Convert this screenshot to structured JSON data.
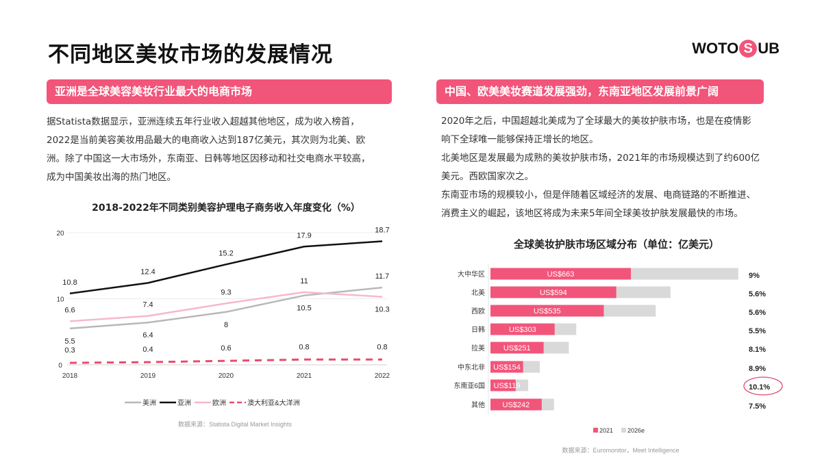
{
  "title": "不同地区美妆市场的发展情况",
  "logo": {
    "text_left": "WOTO",
    "text_mid": "S",
    "text_right": "UB",
    "brand_color": "#f2557a"
  },
  "left": {
    "banner": "亚洲是全球美容美妆行业最大的电商市场",
    "paragraph_lines": [
      "据Statista数据显示，亚洲连续五年行业收入超越其他地区，成为收入榜首，",
      "2022是当前美容美妆用品最大的电商收入达到187亿美元，其次则为北美、欧",
      "洲。除了中国这一大市场外，东南亚、日韩等地区因移动和社交电商水平较高，",
      "成为中国美妆出海的热门地区。"
    ]
  },
  "right": {
    "banner": "中国、欧美美妆赛道发展强劲，东南亚地区发展前景广阔",
    "paragraph_lines": [
      "2020年之后，中国超越北美成为了全球最大的美妆护肤市场，也是在疫情影",
      "响下全球唯一能够保持正增长的地区。",
      "北美地区是发展最为成熟的美妆护肤市场，2021年的市场规模达到了约600亿",
      "美元。西欧国家次之。",
      "东南亚市场的规模较小，但是伴随着区域经济的发展、电商链路的不断推进、",
      "消费主义的崛起，该地区将成为未来5年间全球美妆护肤发展最快的市场。"
    ]
  },
  "chart_data": [
    {
      "type": "line",
      "title": "2018-2022年不同类别美容护理电子商务收入年度变化（%）",
      "x": [
        "2018",
        "2019",
        "2020",
        "2021",
        "2022"
      ],
      "ylim": [
        0,
        20
      ],
      "yticks": [
        "0",
        "10",
        "20"
      ],
      "grid": true,
      "legend_position": "bottom",
      "series": [
        {
          "name": "美洲",
          "values": [
            5.5,
            6.4,
            8,
            10.5,
            11.7
          ],
          "labels": [
            "5.5",
            "6.4",
            "8",
            "10.5",
            "11.7"
          ],
          "color": "#b8b8b8",
          "dash": false
        },
        {
          "name": "亚洲",
          "values": [
            10.8,
            12.4,
            15.2,
            17.9,
            18.7
          ],
          "labels": [
            "10.8",
            "12.4",
            "15.2",
            "17.9",
            "18.7"
          ],
          "color": "#111111",
          "dash": false
        },
        {
          "name": "欧洲",
          "values": [
            6.6,
            7.4,
            9.3,
            11,
            10.3
          ],
          "labels": [
            "6.6",
            "7.4",
            "9.3",
            "11",
            "10.3"
          ],
          "color": "#f7b8c8",
          "dash": false
        },
        {
          "name": "澳大利亚&大洋洲",
          "values": [
            0.3,
            0.4,
            0.6,
            0.8,
            0.8
          ],
          "labels": [
            "0.3",
            "0.4",
            "0.6",
            "0.8",
            "0.8"
          ],
          "color": "#ea4a6e",
          "dash": true
        }
      ],
      "source": "数据来源：Statista Digital Market Insights"
    },
    {
      "type": "bar",
      "orientation": "horizontal",
      "title": "全球美妆护肤市场区域分布（单位：亿美元）",
      "categories": [
        "大中华区",
        "北美",
        "西欧",
        "日韩",
        "拉美",
        "中东北非",
        "东南亚6国",
        "其他"
      ],
      "series": [
        {
          "name": "2021",
          "values": [
            663,
            594,
            535,
            303,
            251,
            154,
            119,
            242
          ],
          "labels": [
            "US$663",
            "US$594",
            "US$535",
            "US$303",
            "US$251",
            "US$154",
            "US$119",
            "US$242"
          ],
          "color": "#f2557a"
        },
        {
          "name": "2026e",
          "values": [
            1170,
            850,
            780,
            405,
            370,
            233,
            178,
            300
          ],
          "color": "#d9d9d9"
        }
      ],
      "growth_labels": [
        "9%",
        "5.6%",
        "5.6%",
        "5.5%",
        "8.1%",
        "8.9%",
        "10.1%",
        "7.5%"
      ],
      "highlighted": "10.1%",
      "highlight_color": "#e0456a",
      "legend_position": "bottom",
      "source": "数据来源：Euromonitor，Meet Intelligence"
    }
  ]
}
